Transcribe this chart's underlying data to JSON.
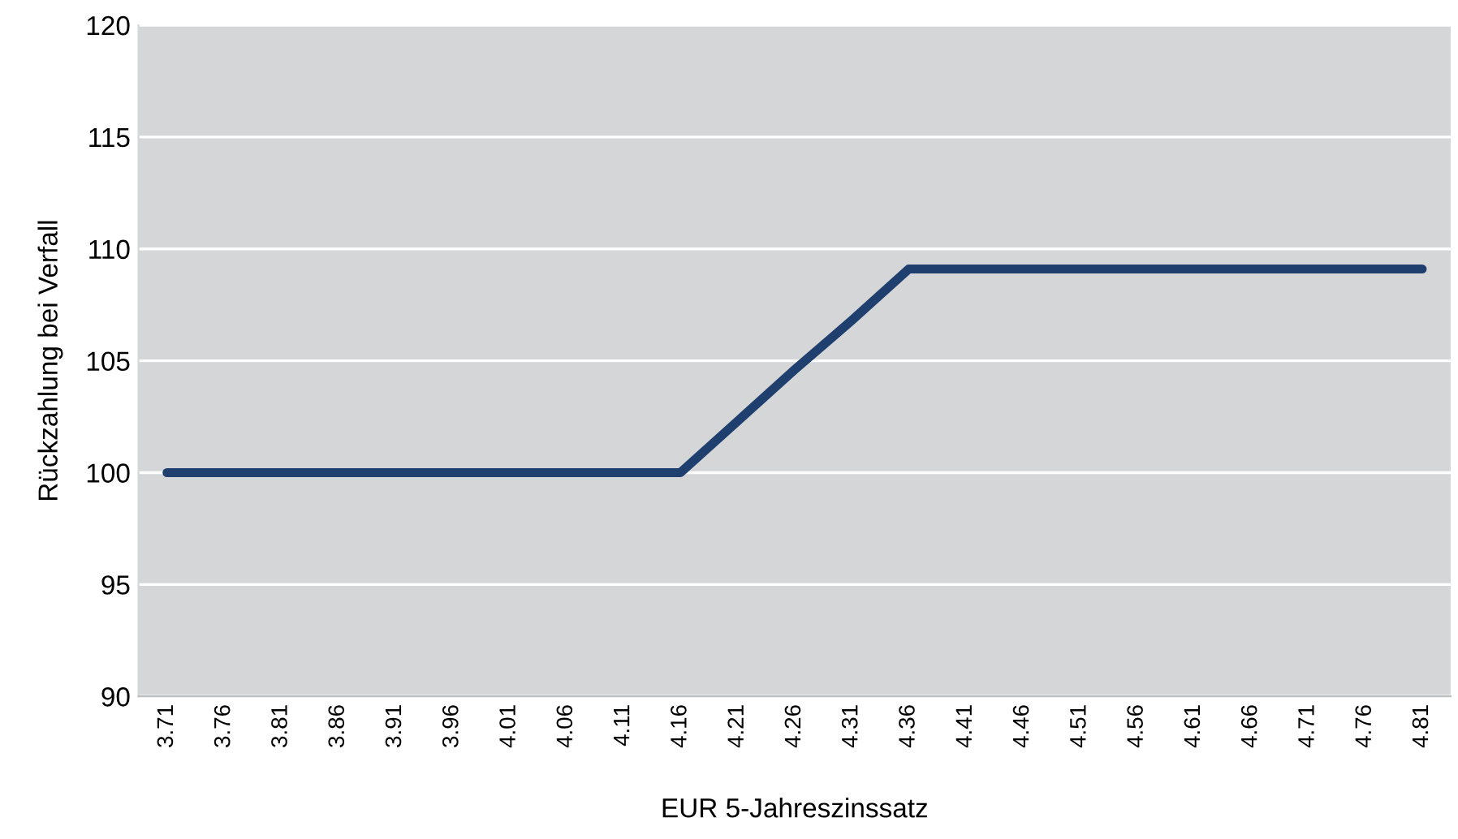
{
  "chart_data": {
    "type": "line",
    "xlabel": "EUR 5-Jahreszinssatz",
    "ylabel": "Rückzahlung bei Verfall",
    "categories": [
      "3.71",
      "3.76",
      "3.81",
      "3.86",
      "3.91",
      "3.96",
      "4.01",
      "4.06",
      "4.11",
      "4.16",
      "4.21",
      "4.26",
      "4.31",
      "4.36",
      "4.41",
      "4.46",
      "4.51",
      "4.56",
      "4.61",
      "4.66",
      "4.71",
      "4.76",
      "4.81"
    ],
    "series": [
      {
        "color": "#1f3f6f",
        "values": [
          100,
          100,
          100,
          100,
          100,
          100,
          100,
          100,
          100,
          100,
          102.3,
          104.6,
          106.8,
          109.1,
          109.1,
          109.1,
          109.1,
          109.1,
          109.1,
          109.1,
          109.1,
          109.1,
          109.1
        ]
      }
    ],
    "ylim": [
      90,
      120
    ],
    "yticks": [
      90,
      95,
      100,
      105,
      110,
      115,
      120
    ],
    "grid": "y",
    "marker": "none",
    "line_style": "solid"
  }
}
